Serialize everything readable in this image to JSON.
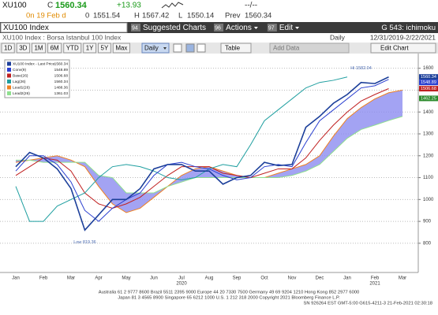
{
  "header": {
    "ticker": "XU100",
    "close_label": "C",
    "close": "1560.34",
    "change": "+13.93",
    "realtime": "--/--"
  },
  "quote_line": {
    "on": "0n 19 Feb d",
    "open_label": "0",
    "open": "1551.54",
    "high_label": "H",
    "high": "1567.42",
    "low_label": "L",
    "low": "1550.14",
    "prev_label": "Prev",
    "prev": "1560.34"
  },
  "menu": {
    "security": "XU100 Index",
    "items": [
      {
        "num": "94",
        "label": "Suggested Charts"
      },
      {
        "num": "96",
        "label": "Actions"
      },
      {
        "num": "97",
        "label": "Edit"
      }
    ],
    "function": "G 543: ichimoku"
  },
  "subheader": {
    "title": "XU100 Index : Borsa Istanbul 100 Index",
    "frequency": "Daily",
    "range": "12/31/2019-2/22/2021"
  },
  "toolbar": {
    "ranges": [
      "1D",
      "3D",
      "1M",
      "6M",
      "YTD",
      "1Y",
      "5Y",
      "Max"
    ],
    "period": "Daily",
    "table": "Table",
    "add_data": "Add Data",
    "edit_chart": "Edit Chart"
  },
  "chart": {
    "type": "line",
    "categories": [
      "Jan",
      null,
      "Feb",
      null,
      "Mar",
      null,
      "Apr",
      null,
      "May",
      null,
      "Jun",
      null,
      "Jul",
      null,
      "Aug",
      null,
      "Sep",
      null,
      "Oct",
      null,
      "Nov",
      null,
      "Dec",
      null,
      "Jan",
      null,
      "Feb",
      null,
      "Mar"
    ],
    "years": [
      {
        "label": "2020",
        "at": 12
      },
      {
        "label": "2021",
        "at": 26
      }
    ],
    "ylim": [
      670,
      1660
    ],
    "yticks": [
      800,
      900,
      1000,
      1100,
      1200,
      1300,
      1400,
      1500,
      1600
    ],
    "grid": true,
    "cloud_color": "#8c8cf0",
    "series": [
      {
        "name": "XU100 Index - Last Price",
        "legend_value": "1560.34",
        "color": "#1c3f9a",
        "values": [
          1150,
          1215,
          1190,
          1140,
          1050,
          860,
          930,
          1000,
          1000,
          1050,
          1140,
          1160,
          1160,
          1130,
          1130,
          1070,
          1100,
          1110,
          1170,
          1155,
          1160,
          1330,
          1380,
          1440,
          1480,
          1535,
          1530,
          1560,
          null
        ]
      },
      {
        "name": "Conv(9)",
        "legend_value": "1548.89",
        "color": "#2a3fd0",
        "values": [
          1130,
          1200,
          1200,
          1160,
          1080,
          950,
          900,
          960,
          1000,
          1030,
          1110,
          1160,
          1170,
          1150,
          1140,
          1110,
          1090,
          1100,
          1150,
          1160,
          1150,
          1260,
          1360,
          1410,
          1460,
          1510,
          1520,
          1549,
          null
        ]
      },
      {
        "name": "Base(26)",
        "legend_value": "1506.68",
        "color": "#c02020",
        "values": [
          1110,
          1150,
          1190,
          1180,
          1130,
          1030,
          980,
          960,
          980,
          1010,
          1060,
          1110,
          1150,
          1150,
          1150,
          1120,
          1110,
          1100,
          1120,
          1140,
          1140,
          1190,
          1270,
          1340,
          1400,
          1450,
          1480,
          1507,
          null
        ]
      },
      {
        "name": "Lag(26)",
        "legend_value": "1560.34",
        "color": "#1f9fa0",
        "values": [
          1060,
          900,
          900,
          970,
          1000,
          1030,
          1100,
          1150,
          1160,
          1150,
          1130,
          1100,
          1090,
          1100,
          1140,
          1160,
          1150,
          1250,
          1360,
          1410,
          1460,
          1510,
          1535,
          1545,
          1560,
          null,
          null,
          null,
          null
        ]
      },
      {
        "name": "Lead1(26)",
        "legend_value": "1488.36",
        "color": "#f08020",
        "values": [
          1170,
          1180,
          1190,
          1200,
          1180,
          1150,
          1060,
          980,
          940,
          960,
          1010,
          1060,
          1110,
          1140,
          1150,
          1130,
          1110,
          1100,
          1100,
          1120,
          1140,
          1160,
          1200,
          1290,
          1370,
          1420,
          1460,
          1488,
          1500
        ]
      },
      {
        "name": "Lead2(26)",
        "legend_value": "1361.03",
        "color": "#8fe08f",
        "values": [
          1180,
          1180,
          1170,
          1170,
          1170,
          1170,
          1110,
          1100,
          1030,
          1030,
          1030,
          1060,
          1080,
          1100,
          1100,
          1100,
          1100,
          1100,
          1100,
          1100,
          1110,
          1130,
          1160,
          1220,
          1280,
          1320,
          1340,
          1361,
          1380
        ]
      }
    ],
    "axis_tags": [
      {
        "value": 1560.34,
        "color": "#1c3f9a"
      },
      {
        "value": 1548.89,
        "color": "#2a3fd0"
      },
      {
        "value": 1506.68,
        "color": "#c02020"
      },
      {
        "value": 1462.25,
        "color": "#2a8a2a"
      }
    ],
    "annotations": [
      {
        "text": "Hi 1582.04",
        "at": 25,
        "value": 1600
      },
      {
        "text": "Low 819.36",
        "at": 5,
        "value": 805
      }
    ]
  },
  "footer": [
    "Australia 61 2 9777 8600 Brazil 5511 2395 9000 Europe 44 20 7330 7500 Germany 49 69 9204 1210 Hong Kong 852 2977 6000",
    "Japan 81 3 4565 8900       Singapore 65 6212 1000       U.S. 1 212 318 2000       Copyright 2021 Bloomberg Finance L.P.",
    "SN 926264 EST  GMT-5:00 G615-4211-3 21-Feb-2021 02:30:18"
  ]
}
